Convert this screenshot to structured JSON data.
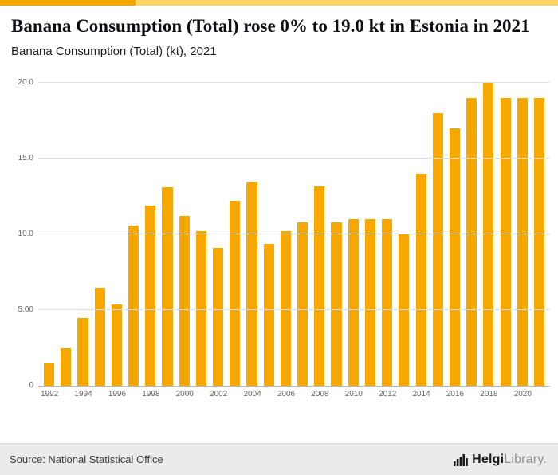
{
  "header": {
    "title": "Banana Consumption (Total) rose 0% to 19.0 kt in Estonia in 2021",
    "subtitle": "Banana Consumption (Total) (kt), 2021"
  },
  "chart_data": {
    "type": "bar",
    "title": "Banana Consumption (Total) (kt), 2021",
    "categories": [
      "1992",
      "1993",
      "1994",
      "1995",
      "1996",
      "1997",
      "1998",
      "1999",
      "2000",
      "2001",
      "2002",
      "2003",
      "2004",
      "2005",
      "2006",
      "2007",
      "2008",
      "2009",
      "2010",
      "2011",
      "2012",
      "2013",
      "2014",
      "2015",
      "2016",
      "2017",
      "2018",
      "2019",
      "2020",
      "2021"
    ],
    "values": [
      1.5,
      2.5,
      4.5,
      6.5,
      5.4,
      10.6,
      11.9,
      13.1,
      11.2,
      10.2,
      9.1,
      12.2,
      13.5,
      9.4,
      10.2,
      10.8,
      13.2,
      10.8,
      11.0,
      11.0,
      11.0,
      10.0,
      14.0,
      18.0,
      17.0,
      19.0,
      20.1,
      19.0,
      19.0,
      19.0
    ],
    "xlabel": "",
    "ylabel": "",
    "ylim": [
      0,
      20.6
    ],
    "yticks": [
      {
        "value": 0,
        "label": "0"
      },
      {
        "value": 5,
        "label": "5.00"
      },
      {
        "value": 10,
        "label": "10.0"
      },
      {
        "value": 15,
        "label": "15.0"
      },
      {
        "value": 20,
        "label": "20.0"
      }
    ],
    "xtick_labels": [
      "1992",
      "1994",
      "1996",
      "1998",
      "2000",
      "2002",
      "2004",
      "2006",
      "2008",
      "2010",
      "2012",
      "2014",
      "2016",
      "2018",
      "2020"
    ],
    "bar_color": "#F6A800",
    "grid": true,
    "legend": "none"
  },
  "footer": {
    "source": "Source: National Statistical Office",
    "logo": {
      "icon": "bar-chart-icon",
      "brand_bold": "Helgi",
      "brand_light": "Library."
    }
  },
  "colors": {
    "accent_dark": "#F5A800",
    "accent_light": "#FFD45F",
    "grid": "#e0e0e0",
    "axis": "#bbbbbb",
    "tick_text": "#666666"
  }
}
